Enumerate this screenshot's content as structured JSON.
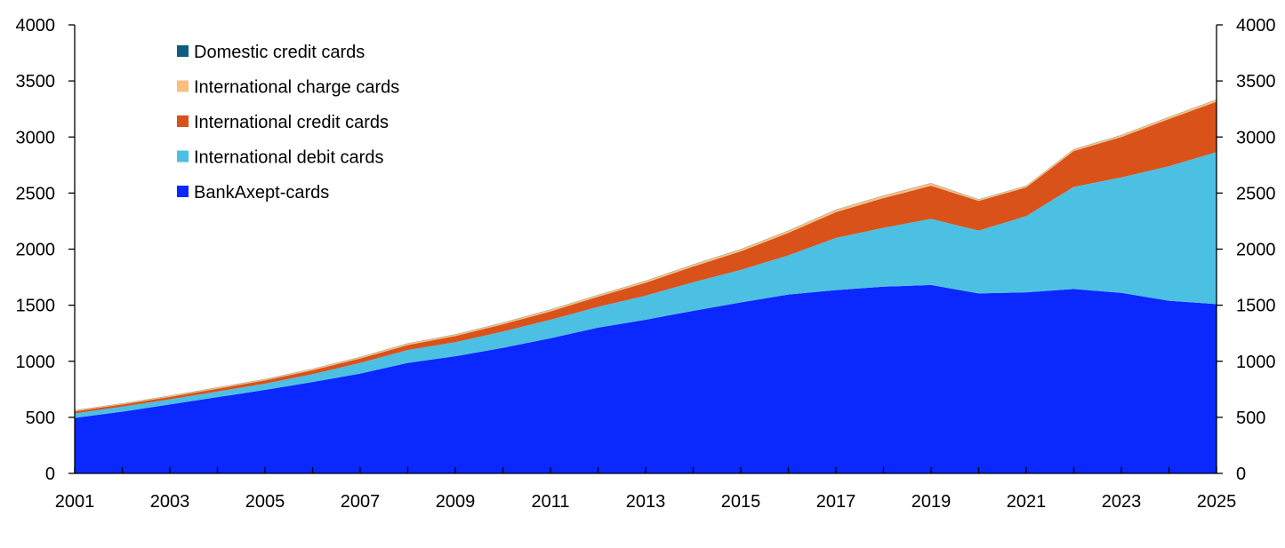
{
  "chart_data": {
    "type": "area",
    "stacked": true,
    "title": "",
    "xlabel": "",
    "ylabel": "",
    "x": [
      2001,
      2002,
      2003,
      2004,
      2005,
      2006,
      2007,
      2008,
      2009,
      2010,
      2011,
      2012,
      2013,
      2014,
      2015,
      2016,
      2017,
      2018,
      2019,
      2020,
      2021,
      2022,
      2023,
      2024,
      2025
    ],
    "x_tick_labels": [
      "2001",
      "2003",
      "2005",
      "2007",
      "2009",
      "2011",
      "2013",
      "2015",
      "2017",
      "2019",
      "2021",
      "2023",
      "2025"
    ],
    "ylim": [
      0,
      4000
    ],
    "y_ticks": [
      0,
      500,
      1000,
      1500,
      2000,
      2500,
      3000,
      3500,
      4000
    ],
    "y_axis_right": true,
    "grid": false,
    "legend_position": "top-left",
    "series": [
      {
        "name": "BankAxept-cards",
        "color": "#0a28ff",
        "values": [
          495,
          550,
          615,
          680,
          745,
          815,
          890,
          985,
          1045,
          1120,
          1205,
          1300,
          1370,
          1450,
          1525,
          1595,
          1635,
          1665,
          1680,
          1605,
          1615,
          1645,
          1610,
          1540,
          1510
        ]
      },
      {
        "name": "International debit cards",
        "color": "#4cc0e2",
        "values": [
          40,
          45,
          45,
          50,
          55,
          70,
          95,
          115,
          125,
          145,
          165,
          185,
          215,
          255,
          290,
          350,
          465,
          525,
          590,
          560,
          680,
          910,
          1030,
          1200,
          1355
        ]
      },
      {
        "name": "International credit cards",
        "color": "#d9521a",
        "values": [
          18,
          20,
          22,
          25,
          30,
          35,
          40,
          45,
          55,
          65,
          75,
          90,
          115,
          140,
          165,
          200,
          230,
          265,
          295,
          265,
          255,
          320,
          360,
          420,
          450
        ]
      },
      {
        "name": "International charge cards",
        "color": "#f8bf7e",
        "values": [
          8,
          8,
          9,
          10,
          10,
          11,
          12,
          13,
          13,
          14,
          15,
          15,
          16,
          17,
          18,
          19,
          20,
          21,
          22,
          13,
          13,
          15,
          16,
          17,
          18
        ]
      },
      {
        "name": "Domestic credit cards",
        "color": "#0d5d82",
        "values": [
          2,
          2,
          2,
          2,
          2,
          2,
          2,
          2,
          2,
          2,
          2,
          2,
          2,
          2,
          2,
          2,
          2,
          2,
          2,
          2,
          2,
          2,
          2,
          2,
          2
        ]
      }
    ],
    "legend_order": [
      "Domestic credit cards",
      "International charge cards",
      "International credit cards",
      "International debit cards",
      "BankAxept-cards"
    ]
  }
}
